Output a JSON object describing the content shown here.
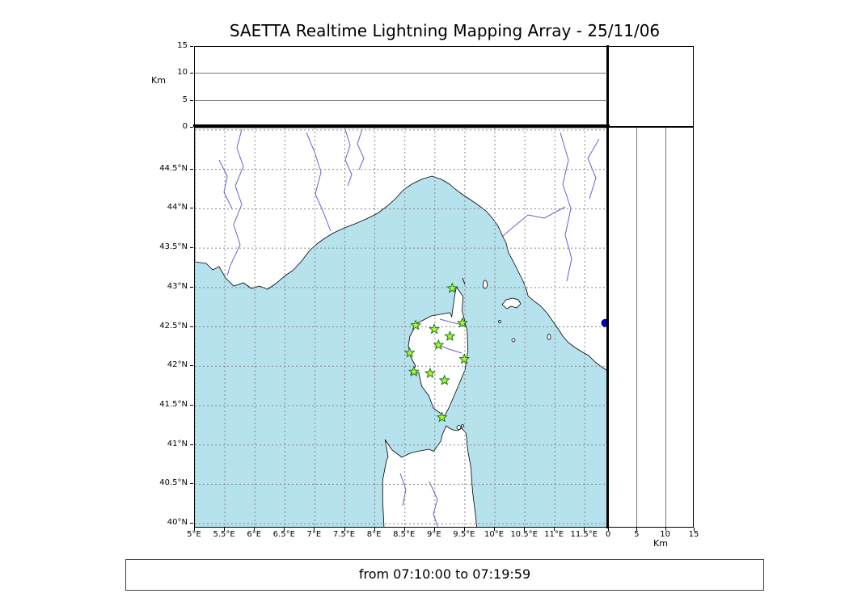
{
  "title": "SAETTA Realtime Lightning Mapping Array - 25/11/06",
  "footer": {
    "time_range": "from 07:10:00 to 07:19:59"
  },
  "altitude_panel": {
    "axis_label": "Km",
    "tick_labels": [
      "0",
      "5",
      "10",
      "15"
    ],
    "max_km": 15
  },
  "right_panel": {
    "axis_label": "Km",
    "tick_labels": [
      "0",
      "5",
      "10",
      "15"
    ],
    "max_km": 15
  },
  "map": {
    "lon_min": 5.0,
    "lon_max": 11.9,
    "lat_min": 39.94,
    "lat_max": 45.03,
    "grid_step_deg": 0.5,
    "lon_tick_labels": [
      "5°E",
      "5.5°E",
      "6°E",
      "6.5°E",
      "7°E",
      "7.5°E",
      "8°E",
      "8.5°E",
      "9°E",
      "9.5°E",
      "10°E",
      "10.5°E",
      "11°E",
      "11.5°E"
    ],
    "lat_tick_labels": [
      "40°N",
      "40.5°N",
      "41°N",
      "41.5°N",
      "42°N",
      "42.5°N",
      "43°N",
      "43.5°N",
      "44°N",
      "44.5°N"
    ],
    "stations": [
      {
        "lon": 9.29,
        "lat": 42.99
      },
      {
        "lon": 8.68,
        "lat": 42.52
      },
      {
        "lon": 8.99,
        "lat": 42.47
      },
      {
        "lon": 9.46,
        "lat": 42.55
      },
      {
        "lon": 9.25,
        "lat": 42.38
      },
      {
        "lon": 9.06,
        "lat": 42.27
      },
      {
        "lon": 8.58,
        "lat": 42.17
      },
      {
        "lon": 9.49,
        "lat": 42.09
      },
      {
        "lon": 8.65,
        "lat": 41.93
      },
      {
        "lon": 8.92,
        "lat": 41.91
      },
      {
        "lon": 9.16,
        "lat": 41.82
      },
      {
        "lon": 9.12,
        "lat": 41.35
      }
    ],
    "city_marker": {
      "lon": 11.84,
      "lat": 42.55
    },
    "colors": {
      "sea": "#b6e2ee",
      "land": "#ffffff",
      "coast": "#000000",
      "river": "#6363cf",
      "grid": "#888888",
      "station_fill": "#b4f03a",
      "station_edge": "#1a7a1a",
      "city": "#0000bb"
    }
  }
}
